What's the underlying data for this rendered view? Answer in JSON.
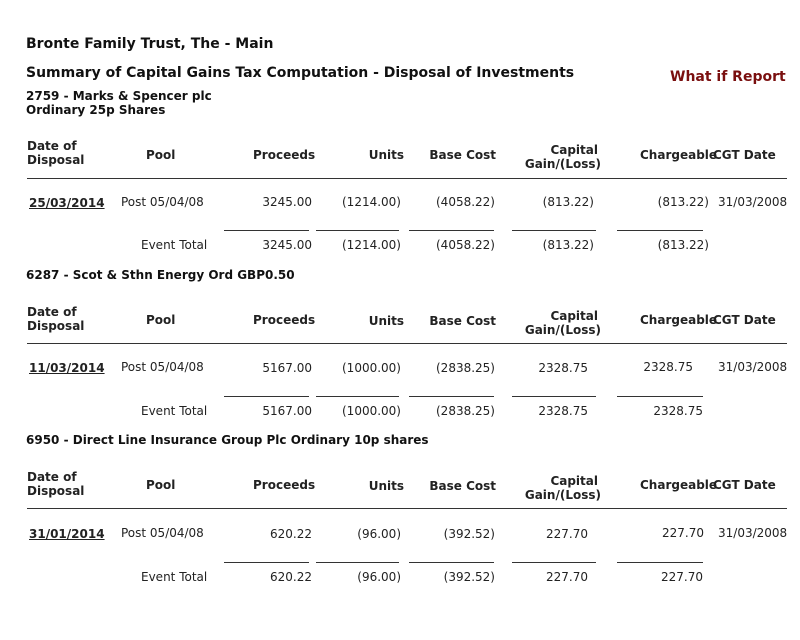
{
  "report": {
    "entity": "Bronte Family Trust, The - Main",
    "title": "Summary of Capital Gains Tax Computation - Disposal of Investments",
    "what_if": "What if Report"
  },
  "columns": {
    "date_line1": "Date of",
    "date_line2": "Disposal",
    "pool": "Pool",
    "proceeds": "Proceeds",
    "units": "Units",
    "base_cost": "Base Cost",
    "capital_line1": "Capital",
    "capital_line2": "Gain/(Loss)",
    "chargeable": "Chargeable",
    "cgt_date": "CGT Date"
  },
  "sections": [
    {
      "name_line1": "2759 - Marks & Spencer plc",
      "name_line2": "Ordinary 25p Shares",
      "row": {
        "date": "25/03/2014",
        "pool": "Post 05/04/08",
        "proceeds": "3245.00",
        "units": "(1214.00)",
        "base_cost": "(4058.22)",
        "capital": "(813.22)",
        "chargeable": "(813.22)",
        "cgt_date": "31/03/2008"
      },
      "total": {
        "label": "Event Total",
        "proceeds": "3245.00",
        "units": "(1214.00)",
        "base_cost": "(4058.22)",
        "capital": "(813.22)",
        "chargeable": "(813.22)"
      }
    },
    {
      "name_line1": "6287 - Scot & Sthn Energy Ord GBP0.50",
      "name_line2": "",
      "row": {
        "date": "11/03/2014",
        "pool": "Post 05/04/08",
        "proceeds": "5167.00",
        "units": "(1000.00)",
        "base_cost": "(2838.25)",
        "capital": "2328.75",
        "chargeable": "2328.75",
        "cgt_date": "31/03/2008"
      },
      "total": {
        "label": "Event Total",
        "proceeds": "5167.00",
        "units": "(1000.00)",
        "base_cost": "(2838.25)",
        "capital": "2328.75",
        "chargeable": "2328.75"
      }
    },
    {
      "name_line1": "6950 - Direct Line Insurance Group Plc Ordinary 10p shares",
      "name_line2": "",
      "row": {
        "date": "31/01/2014",
        "pool": "Post 05/04/08",
        "proceeds": "620.22",
        "units": "(96.00)",
        "base_cost": "(392.52)",
        "capital": "227.70",
        "chargeable": "227.70",
        "cgt_date": "31/03/2008"
      },
      "total": {
        "label": "Event Total",
        "proceeds": "620.22",
        "units": "(96.00)",
        "base_cost": "(392.52)",
        "capital": "227.70",
        "chargeable": "227.70"
      }
    }
  ]
}
